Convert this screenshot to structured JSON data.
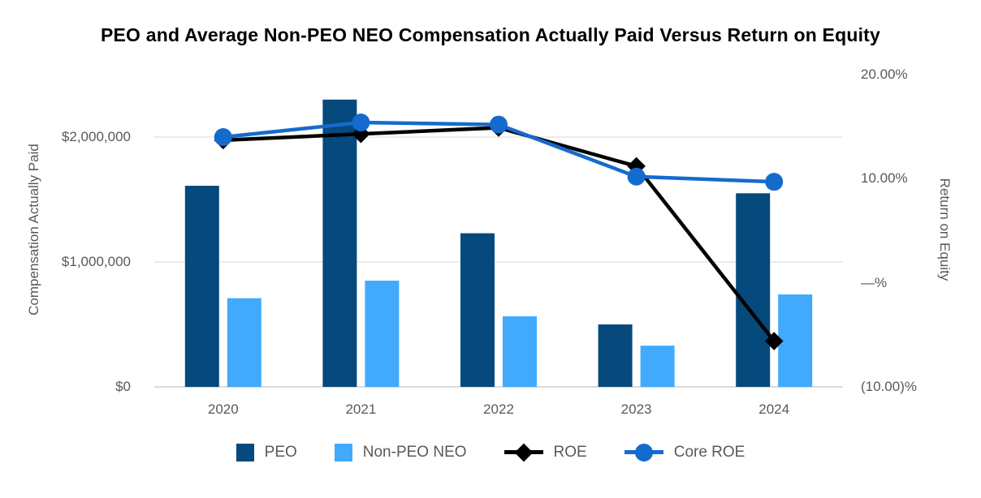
{
  "chart_data": {
    "type": "combo-bar-line",
    "title": "PEO and Average Non-PEO NEO Compensation Actually Paid Versus Return on Equity",
    "categories": [
      "2020",
      "2021",
      "2022",
      "2023",
      "2024"
    ],
    "bar_series": [
      {
        "name": "PEO",
        "axis": "left",
        "color": "#05497D",
        "values": [
          1610000,
          2300000,
          1230000,
          500000,
          1550000
        ]
      },
      {
        "name": "Non-PEO NEO",
        "axis": "left",
        "color": "#41AAFC",
        "values": [
          710000,
          850000,
          565000,
          330000,
          740000
        ]
      }
    ],
    "line_series": [
      {
        "name": "ROE",
        "axis": "right",
        "marker": "diamond",
        "color": "#000000",
        "unit": "percent",
        "values": [
          13.7,
          14.3,
          14.9,
          11.2,
          -5.6
        ]
      },
      {
        "name": "Core ROE",
        "axis": "right",
        "marker": "circle",
        "color": "#146BCE",
        "unit": "percent",
        "values": [
          14.0,
          15.4,
          15.2,
          10.2,
          9.7
        ]
      }
    ],
    "left_axis": {
      "label": "Compensation Actually Paid",
      "range": [
        0,
        2500000
      ],
      "ticks": [
        {
          "value": 0,
          "label": "$0"
        },
        {
          "value": 1000000,
          "label": "$1,000,000"
        },
        {
          "value": 2000000,
          "label": "$2,000,000"
        }
      ]
    },
    "right_axis": {
      "label": "Return on Equity",
      "range": [
        -10,
        20
      ],
      "ticks": [
        {
          "value": 20,
          "label": "20.00%"
        },
        {
          "value": 10,
          "label": "10.00%"
        },
        {
          "value": 0,
          "label": "—%"
        },
        {
          "value": -10,
          "label": "(10.00)%"
        }
      ]
    },
    "grid": "horizontal",
    "legend_position": "bottom"
  },
  "legend": {
    "items": [
      {
        "label": "PEO",
        "swatch": "square",
        "color": "#05497D"
      },
      {
        "label": "Non-PEO NEO",
        "swatch": "square",
        "color": "#41AAFC"
      },
      {
        "label": "ROE",
        "swatch": "line-diamond",
        "color": "#000000"
      },
      {
        "label": "Core ROE",
        "swatch": "line-circle",
        "color": "#146BCE"
      }
    ]
  },
  "colors": {
    "grid": "#E6E6E6",
    "axis_line": "#CFCFCF",
    "tick_text": "#58595B",
    "title_text": "#000000",
    "background": "#FFFFFF"
  }
}
